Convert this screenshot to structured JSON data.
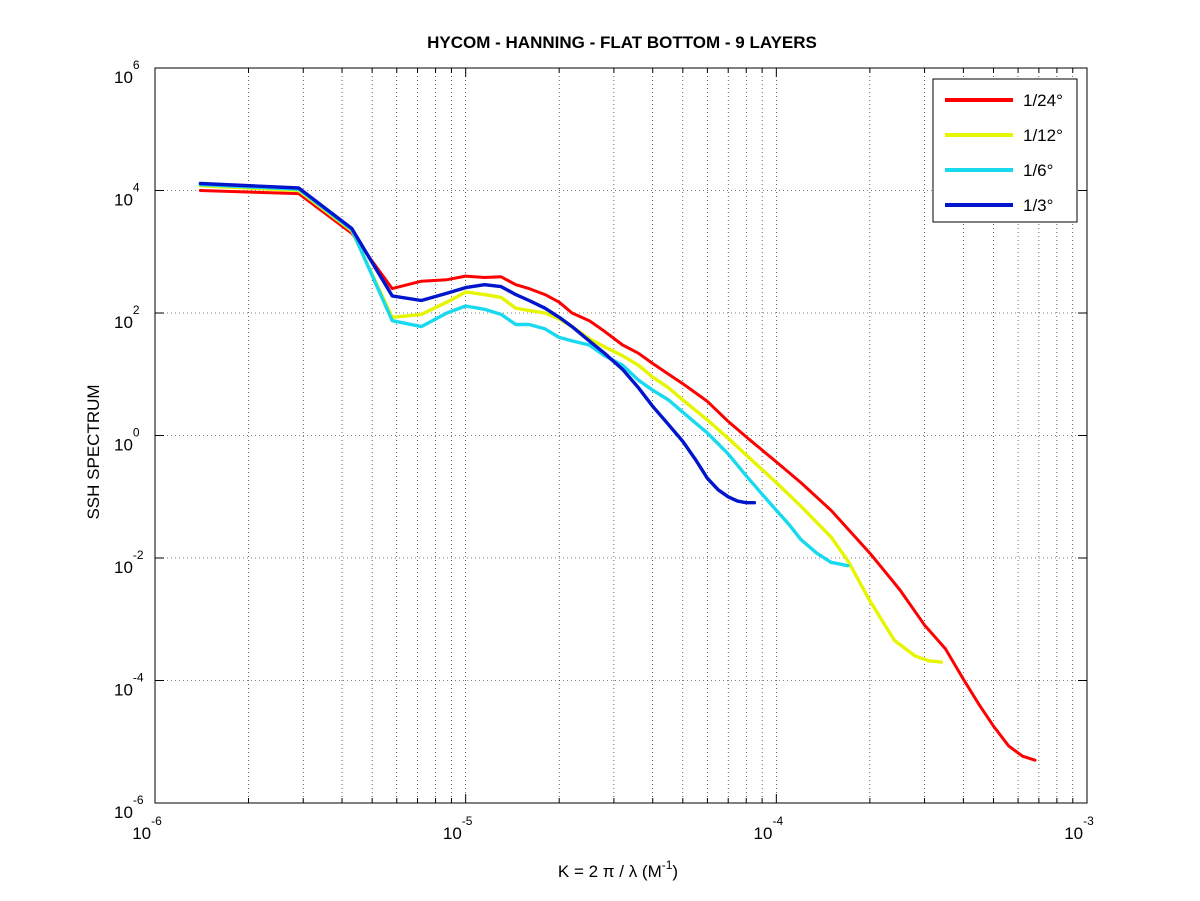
{
  "chart_data": {
    "type": "line",
    "title": "HYCOM - HANNING - FLAT BOTTOM - 9 LAYERS",
    "xlabel": {
      "text": "K = 2 π / λ  (M",
      "sup": "-1",
      "close": ")"
    },
    "ylabel": "SSH SPECTRUM",
    "x_scale": "log",
    "y_scale": "log",
    "xlim": [
      1e-06,
      0.001
    ],
    "ylim": [
      1e-06,
      1000000.0
    ],
    "grid": true,
    "legend_position": "top-right",
    "x_ticks": [
      {
        "base": "10",
        "exp": "-6",
        "value": 1e-06
      },
      {
        "base": "10",
        "exp": "-5",
        "value": 1e-05
      },
      {
        "base": "10",
        "exp": "-4",
        "value": 0.0001
      },
      {
        "base": "10",
        "exp": "-3",
        "value": 0.001
      }
    ],
    "y_ticks": [
      {
        "base": "10",
        "exp": "6",
        "value": 1000000.0
      },
      {
        "base": "10",
        "exp": "4",
        "value": 10000.0
      },
      {
        "base": "10",
        "exp": "2",
        "value": 100.0
      },
      {
        "base": "10",
        "exp": "0",
        "value": 1
      },
      {
        "base": "10",
        "exp": "-2",
        "value": 0.01
      },
      {
        "base": "10",
        "exp": "-4",
        "value": 0.0001
      },
      {
        "base": "10",
        "exp": "-6",
        "value": 1e-06
      }
    ],
    "series": [
      {
        "name": "1/24°",
        "color": "#ff0000",
        "x": [
          1.4e-06,
          2.9e-06,
          4.3e-06,
          5.8e-06,
          7.2e-06,
          8.7e-06,
          1e-05,
          1.15e-05,
          1.3e-05,
          1.45e-05,
          1.6e-05,
          1.8e-05,
          2e-05,
          2.2e-05,
          2.5e-05,
          2.8e-05,
          3.2e-05,
          3.6e-05,
          4e-05,
          4.5e-05,
          5e-05,
          6e-05,
          7e-05,
          8e-05,
          0.0001,
          0.00012,
          0.00015,
          0.0002,
          0.00025,
          0.0003,
          0.00035,
          0.0004,
          0.00045,
          0.0005,
          0.00056,
          0.00062,
          0.00068
        ],
        "y": [
          10000,
          8900,
          2000,
          250,
          330,
          350,
          400,
          380,
          390,
          290,
          250,
          200,
          150,
          100,
          75,
          50,
          30,
          22,
          15,
          10,
          7,
          3.6,
          1.7,
          0.95,
          0.37,
          0.17,
          0.06,
          0.012,
          0.003,
          0.0008,
          0.00033,
          0.000105,
          4e-05,
          1.8e-05,
          8.5e-06,
          5.8e-06,
          5e-06
        ]
      },
      {
        "name": "1/12°",
        "color": "#e6f500",
        "x": [
          1.4e-06,
          2.9e-06,
          4.3e-06,
          5.8e-06,
          7.2e-06,
          8.7e-06,
          1e-05,
          1.15e-05,
          1.3e-05,
          1.45e-05,
          1.6e-05,
          1.8e-05,
          2e-05,
          2.2e-05,
          2.5e-05,
          2.8e-05,
          3.2e-05,
          3.6e-05,
          4e-05,
          4.5e-05,
          5e-05,
          6e-05,
          7e-05,
          8e-05,
          0.0001,
          0.00012,
          0.00015,
          0.00017,
          0.0002,
          0.00024,
          0.00028,
          0.00031,
          0.00034
        ],
        "y": [
          12000,
          10000,
          2200,
          85,
          95,
          150,
          220,
          200,
          180,
          120,
          110,
          100,
          80,
          60,
          38,
          28,
          20,
          14,
          9,
          6,
          3.8,
          1.8,
          0.9,
          0.48,
          0.17,
          0.07,
          0.022,
          0.009,
          0.002,
          0.00045,
          0.00025,
          0.00021,
          0.0002
        ]
      },
      {
        "name": "1/6°",
        "color": "#19d9ef",
        "x": [
          1.4e-06,
          2.9e-06,
          4.3e-06,
          5.8e-06,
          7.2e-06,
          8.7e-06,
          1e-05,
          1.15e-05,
          1.3e-05,
          1.45e-05,
          1.6e-05,
          1.8e-05,
          2e-05,
          2.2e-05,
          2.5e-05,
          2.8e-05,
          3.2e-05,
          3.6e-05,
          4e-05,
          4.5e-05,
          5e-05,
          6e-05,
          7e-05,
          8e-05,
          9e-05,
          0.0001,
          0.00011,
          0.00012,
          0.000135,
          0.00015,
          0.00017
        ],
        "y": [
          12500,
          10500,
          2300,
          75,
          60,
          100,
          130,
          115,
          95,
          65,
          65,
          55,
          40,
          35,
          30,
          20,
          14,
          8,
          5.5,
          3.8,
          2.4,
          1.1,
          0.5,
          0.22,
          0.11,
          0.06,
          0.035,
          0.02,
          0.012,
          0.0085,
          0.0075
        ]
      },
      {
        "name": "1/3°",
        "color": "#0015cc",
        "x": [
          1.4e-06,
          2.9e-06,
          4.3e-06,
          5.8e-06,
          7.2e-06,
          8.7e-06,
          1e-05,
          1.15e-05,
          1.3e-05,
          1.45e-05,
          1.6e-05,
          1.8e-05,
          2e-05,
          2.2e-05,
          2.5e-05,
          2.8e-05,
          3.2e-05,
          3.6e-05,
          4e-05,
          4.5e-05,
          5e-05,
          5.5e-05,
          6e-05,
          6.5e-05,
          7e-05,
          7.5e-05,
          8e-05,
          8.5e-05
        ],
        "y": [
          13000,
          11000,
          2400,
          190,
          160,
          210,
          260,
          290,
          270,
          200,
          160,
          120,
          85,
          60,
          35,
          22,
          12,
          6,
          3,
          1.5,
          0.8,
          0.4,
          0.2,
          0.13,
          0.1,
          0.085,
          0.08,
          0.08
        ]
      }
    ]
  }
}
